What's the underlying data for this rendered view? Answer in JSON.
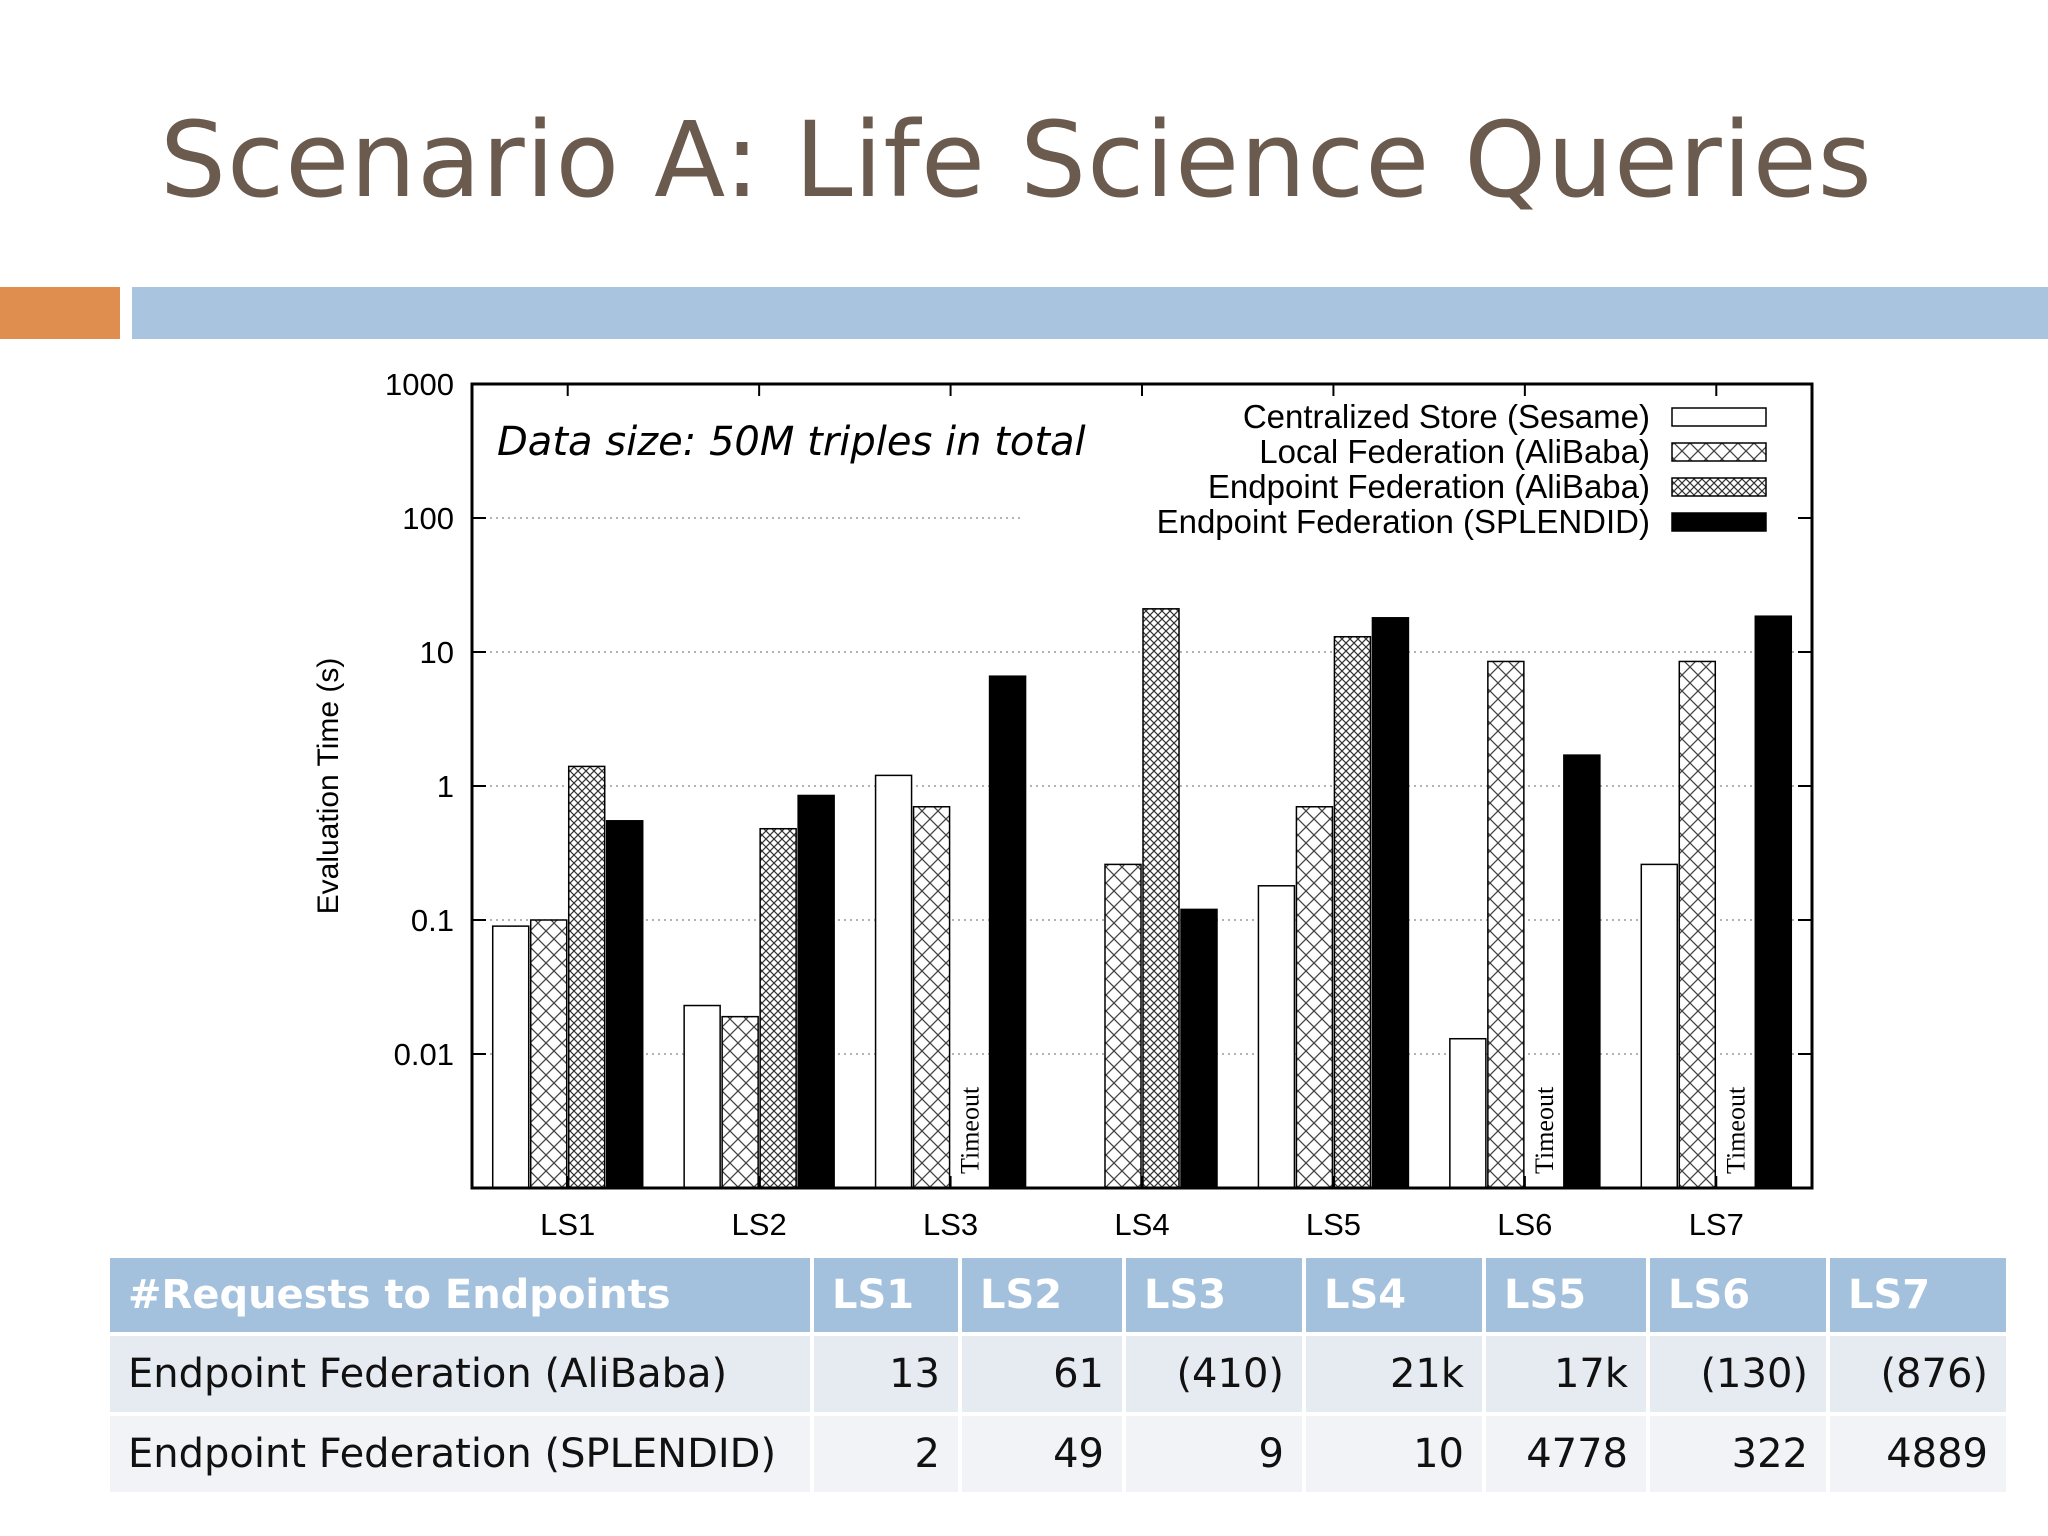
{
  "slide": {
    "title": "Scenario A: Life Science Queries",
    "colors": {
      "title": "#6b5a4e",
      "accent_orange": "#e08e4f",
      "accent_blue": "#a8c4de"
    }
  },
  "chart_data": {
    "type": "bar",
    "ylabel": "Evaluation Time (s)",
    "xlabel": "",
    "yscale": "log",
    "ylim": [
      0.001,
      1000
    ],
    "yticks": [
      {
        "value": 0.01,
        "label": "0.01"
      },
      {
        "value": 0.1,
        "label": "0.1"
      },
      {
        "value": 1,
        "label": "1"
      },
      {
        "value": 10,
        "label": "10"
      },
      {
        "value": 100,
        "label": "100"
      },
      {
        "value": 1000,
        "label": "1000"
      }
    ],
    "grid": "horizontal dotted",
    "legend_position": "top-right",
    "annotation": "Data size: 50M triples in total",
    "categories": [
      "LS1",
      "LS2",
      "LS3",
      "LS4",
      "LS5",
      "LS6",
      "LS7"
    ],
    "series": [
      {
        "name": "Centralized Store (Sesame)",
        "fill": "white",
        "values": [
          0.09,
          0.023,
          1.2,
          null,
          0.18,
          0.013,
          0.26
        ]
      },
      {
        "name": "Local Federation (AliBaba)",
        "fill": "crosshatch",
        "values": [
          0.1,
          0.019,
          0.7,
          0.26,
          0.7,
          8.5,
          8.5
        ]
      },
      {
        "name": "Endpoint Federation (AliBaba)",
        "fill": "dense-crosshatch",
        "values": [
          1.4,
          0.48,
          null,
          21,
          13,
          null,
          null
        ]
      },
      {
        "name": "Endpoint Federation (SPLENDID)",
        "fill": "black",
        "values": [
          0.55,
          0.85,
          6.6,
          0.12,
          18,
          1.7,
          18.5
        ]
      }
    ],
    "timeouts": [
      {
        "category": "LS3",
        "series": "Endpoint Federation (AliBaba)",
        "label": "Timeout"
      },
      {
        "category": "LS6",
        "series": "Endpoint Federation (AliBaba)",
        "label": "Timeout"
      },
      {
        "category": "LS7",
        "series": "Endpoint Federation (AliBaba)",
        "label": "Timeout"
      }
    ]
  },
  "table": {
    "header": [
      "#Requests to Endpoints",
      "LS1",
      "LS2",
      "LS3",
      "LS4",
      "LS5",
      "LS6",
      "LS7"
    ],
    "rows": [
      [
        "Endpoint Federation (AliBaba)",
        "13",
        "61",
        "(410)",
        "21k",
        "17k",
        "(130)",
        "(876)"
      ],
      [
        "Endpoint Federation (SPLENDID)",
        "2",
        "49",
        "9",
        "10",
        "4778",
        "322",
        "4889"
      ]
    ]
  }
}
